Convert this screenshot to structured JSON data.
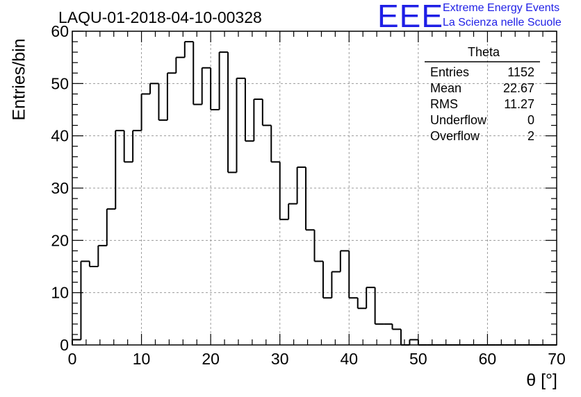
{
  "header": {
    "run_title": "LAQU-01-2018-04-10-00328",
    "logo_text": "EEE",
    "logo_line1": "Extreme Energy Events",
    "logo_line2": "La Scienza nelle Scuole"
  },
  "colors": {
    "logo": "#1f1fe6",
    "histogram": "#000000",
    "grid": "#9a9a9a"
  },
  "chart_data": {
    "type": "histogram",
    "title": "LAQU-01-2018-04-10-00328",
    "xlabel": "θ [°]",
    "ylabel": "Entries/bin",
    "xlim": [
      0,
      70
    ],
    "ylim": [
      0,
      60
    ],
    "bin_width": 1.25,
    "x_ticks": [
      0,
      10,
      20,
      30,
      40,
      50,
      60,
      70
    ],
    "y_ticks": [
      0,
      10,
      20,
      30,
      40,
      50,
      60
    ],
    "grid": true,
    "bin_edges_start": 0,
    "counts": [
      1,
      16,
      15,
      19,
      26,
      41,
      35,
      41,
      48,
      50,
      43,
      52,
      55,
      58,
      46,
      53,
      45,
      56,
      33,
      51,
      39,
      47,
      42,
      35,
      24,
      27,
      34,
      22,
      16,
      9,
      14,
      18,
      9,
      7,
      11,
      4,
      4,
      3,
      0,
      1,
      0,
      0,
      0,
      0,
      0,
      0,
      0,
      0,
      0,
      0,
      0,
      0,
      0,
      0,
      0,
      0
    ],
    "stats": {
      "name": "Theta",
      "rows": [
        {
          "label": "Entries",
          "value": "1152"
        },
        {
          "label": "Mean",
          "value": "22.67"
        },
        {
          "label": "RMS",
          "value": "11.27"
        },
        {
          "label": "Underflow",
          "value": "0"
        },
        {
          "label": "Overflow",
          "value": "2"
        }
      ]
    }
  }
}
